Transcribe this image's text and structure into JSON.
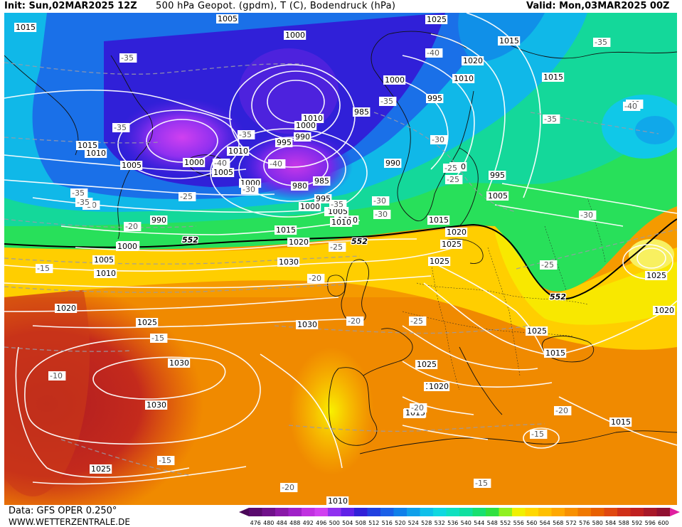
{
  "header": {
    "init": "Init: Sun,02MAR2025 12Z",
    "title": "500 hPa Geopot. (gpdm), T (C), Bodendruck (hPa)",
    "valid": "Valid: Mon,03MAR2025 00Z"
  },
  "footer": {
    "data_source": "Data: GFS OPER 0.250°",
    "site": "WWW.WETTERZENTRALE.DE"
  },
  "colorbar": {
    "ticks": [
      "476",
      "480",
      "484",
      "488",
      "492",
      "496",
      "500",
      "504",
      "508",
      "512",
      "516",
      "520",
      "524",
      "528",
      "532",
      "536",
      "540",
      "544",
      "548",
      "552",
      "556",
      "560",
      "564",
      "568",
      "572",
      "576",
      "580",
      "584",
      "588",
      "592",
      "596",
      "600"
    ],
    "colors": [
      "#5a0a6e",
      "#70108a",
      "#8a18a8",
      "#a020c8",
      "#c030e0",
      "#d040f0",
      "#9030f0",
      "#6020e8",
      "#3020d8",
      "#2040e0",
      "#1a60e8",
      "#1080ea",
      "#10a0ea",
      "#10c0ea",
      "#10d8e0",
      "#10e0c0",
      "#10e0a0",
      "#18e070",
      "#30e040",
      "#90f020",
      "#f0f000",
      "#ffd800",
      "#ffc000",
      "#ffa800",
      "#f89000",
      "#f07800",
      "#e86000",
      "#e04810",
      "#d03018",
      "#c02020",
      "#a81828",
      "#901030"
    ],
    "arrow_left_color": "#4a0858",
    "arrow_right_color": "#e020a0"
  },
  "map": {
    "isobar_labels": [
      {
        "text": "1015"
      },
      {
        "text": "1005"
      },
      {
        "text": "1000"
      },
      {
        "text": "1025"
      },
      {
        "text": "1015"
      },
      {
        "text": "1020"
      },
      {
        "text": "1010"
      },
      {
        "text": "1000"
      },
      {
        "text": "995"
      },
      {
        "text": "1015"
      },
      {
        "text": "1010"
      },
      {
        "text": "1000"
      },
      {
        "text": "985"
      },
      {
        "text": "990"
      },
      {
        "text": "995"
      },
      {
        "text": "1015"
      },
      {
        "text": "1010"
      },
      {
        "text": "1005"
      },
      {
        "text": "1000"
      },
      {
        "text": "1010"
      },
      {
        "text": "1005"
      },
      {
        "text": "1000"
      },
      {
        "text": "990"
      },
      {
        "text": "980"
      },
      {
        "text": "985"
      },
      {
        "text": "1005"
      },
      {
        "text": "995"
      },
      {
        "text": "990"
      },
      {
        "text": "995"
      },
      {
        "text": "1000"
      },
      {
        "text": "1005"
      },
      {
        "text": "1010"
      },
      {
        "text": "990"
      },
      {
        "text": "1000"
      },
      {
        "text": "1015"
      },
      {
        "text": "1020"
      },
      {
        "text": "1005"
      },
      {
        "text": "1010"
      },
      {
        "text": "1015"
      },
      {
        "text": "1020"
      },
      {
        "text": "1025"
      },
      {
        "text": "1030"
      },
      {
        "text": "1025"
      },
      {
        "text": "1020"
      },
      {
        "text": "1025"
      },
      {
        "text": "1030"
      },
      {
        "text": "1030"
      },
      {
        "text": "1030"
      },
      {
        "text": "1025"
      },
      {
        "text": "1020"
      },
      {
        "text": "1015"
      },
      {
        "text": "1025"
      },
      {
        "text": "1020"
      },
      {
        "text": "1015"
      },
      {
        "text": "1025"
      },
      {
        "text": "1010"
      },
      {
        "text": "1000"
      },
      {
        "text": "1010"
      },
      {
        "text": "1010"
      },
      {
        "text": "1005"
      },
      {
        "text": "1010"
      },
      {
        "text": "1015"
      },
      {
        "text": "1020"
      },
      {
        "text": "1025"
      },
      {
        "text": "1015"
      },
      {
        "text": "1010"
      }
    ],
    "temp_labels": [
      {
        "text": "-35"
      },
      {
        "text": "-35"
      },
      {
        "text": "-35"
      },
      {
        "text": "-40"
      },
      {
        "text": "-35"
      },
      {
        "text": "-35"
      },
      {
        "text": "-40"
      },
      {
        "text": "-35"
      },
      {
        "text": "-40"
      },
      {
        "text": "-30"
      },
      {
        "text": "-25"
      },
      {
        "text": "-35"
      },
      {
        "text": "-30"
      },
      {
        "text": "-25"
      },
      {
        "text": "-20"
      },
      {
        "text": "-30"
      },
      {
        "text": "-30"
      },
      {
        "text": "-35"
      },
      {
        "text": "-30"
      },
      {
        "text": "-25"
      },
      {
        "text": "-30"
      },
      {
        "text": "-25"
      },
      {
        "text": "-15"
      },
      {
        "text": "-20"
      },
      {
        "text": "-20"
      },
      {
        "text": "-25"
      },
      {
        "text": "-15"
      },
      {
        "text": "-10"
      },
      {
        "text": "-15"
      },
      {
        "text": "-20"
      },
      {
        "text": "-20"
      },
      {
        "text": "-15"
      },
      {
        "text": "-15"
      },
      {
        "text": "-20"
      },
      {
        "text": "-25"
      },
      {
        "text": "-35"
      },
      {
        "text": "-40"
      },
      {
        "text": "-40"
      }
    ],
    "geopot_labels": [
      {
        "text": "552"
      },
      {
        "text": "552"
      },
      {
        "text": "552"
      }
    ]
  }
}
